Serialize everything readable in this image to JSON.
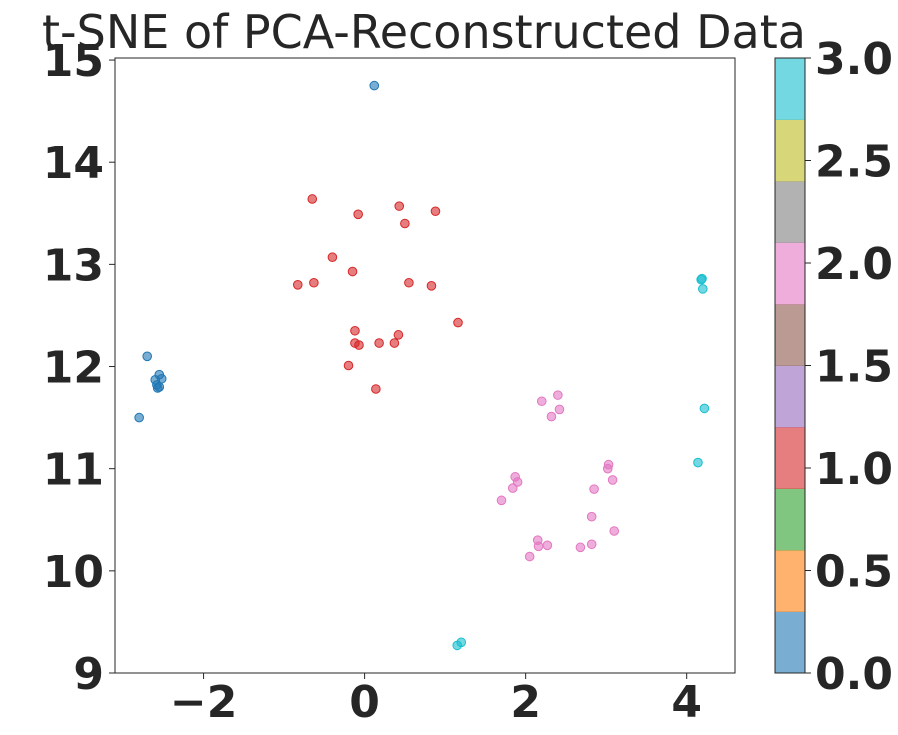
{
  "chart_data": {
    "type": "scatter",
    "title": "t-SNE of PCA-Reconstructed Data",
    "xlabel": "",
    "ylabel": "",
    "xlim": [
      -3.1,
      4.6
    ],
    "ylim": [
      9.0,
      15.02
    ],
    "xticks": [
      -2,
      0,
      2,
      4
    ],
    "xtick_labels": [
      "−2",
      "0",
      "2",
      "4"
    ],
    "yticks": [
      9,
      10,
      11,
      12,
      13,
      14,
      15
    ],
    "ytick_labels": [
      "9",
      "10",
      "11",
      "12",
      "13",
      "14",
      "15"
    ],
    "grid": false,
    "colormap": "tab10",
    "colorbar": {
      "range": [
        0.0,
        3.0
      ],
      "ticks": [
        0.0,
        0.5,
        1.0,
        1.5,
        2.0,
        2.5,
        3.0
      ],
      "tick_labels": [
        "0.0",
        "0.5",
        "1.0",
        "1.5",
        "2.0",
        "2.5",
        "3.0"
      ],
      "colors": [
        "#1f77b4",
        "#ff7f0e",
        "#2ca02c",
        "#d62728",
        "#9467bd",
        "#8c564b",
        "#e377c2",
        "#7f7f7f",
        "#bcbd22",
        "#17becf"
      ]
    },
    "point_alpha": 0.6,
    "series": [
      {
        "label_value": 0,
        "color": "#1f77b4",
        "points": [
          [
            0.12,
            14.75
          ],
          [
            -2.7,
            12.1
          ],
          [
            -2.55,
            11.92
          ],
          [
            -2.6,
            11.87
          ],
          [
            -2.52,
            11.88
          ],
          [
            -2.58,
            11.82
          ],
          [
            -2.57,
            11.79
          ],
          [
            -2.55,
            11.8
          ],
          [
            -2.8,
            11.5
          ]
        ]
      },
      {
        "label_value": 1,
        "color": "#d62728",
        "points": [
          [
            -0.65,
            13.64
          ],
          [
            0.43,
            13.57
          ],
          [
            -0.08,
            13.49
          ],
          [
            0.88,
            13.52
          ],
          [
            0.5,
            13.4
          ],
          [
            -0.4,
            13.07
          ],
          [
            -0.15,
            12.93
          ],
          [
            -0.83,
            12.8
          ],
          [
            -0.63,
            12.82
          ],
          [
            0.55,
            12.82
          ],
          [
            0.83,
            12.79
          ],
          [
            1.16,
            12.43
          ],
          [
            -0.12,
            12.35
          ],
          [
            0.42,
            12.31
          ],
          [
            -0.12,
            12.23
          ],
          [
            -0.07,
            12.21
          ],
          [
            0.18,
            12.23
          ],
          [
            0.37,
            12.23
          ],
          [
            -0.2,
            12.01
          ],
          [
            0.14,
            11.78
          ]
        ]
      },
      {
        "label_value": 2,
        "color": "#e377c2",
        "points": [
          [
            2.4,
            11.72
          ],
          [
            2.2,
            11.66
          ],
          [
            2.42,
            11.58
          ],
          [
            2.32,
            11.51
          ],
          [
            3.03,
            11.04
          ],
          [
            3.02,
            11.0
          ],
          [
            1.87,
            10.92
          ],
          [
            1.9,
            10.87
          ],
          [
            3.08,
            10.89
          ],
          [
            1.84,
            10.81
          ],
          [
            2.85,
            10.8
          ],
          [
            1.7,
            10.69
          ],
          [
            2.82,
            10.53
          ],
          [
            3.1,
            10.39
          ],
          [
            2.15,
            10.3
          ],
          [
            2.27,
            10.25
          ],
          [
            2.16,
            10.24
          ],
          [
            2.68,
            10.23
          ],
          [
            2.82,
            10.26
          ],
          [
            2.05,
            10.14
          ]
        ]
      },
      {
        "label_value": 3,
        "color": "#17becf",
        "points": [
          [
            4.19,
            12.86
          ],
          [
            4.18,
            12.85
          ],
          [
            4.2,
            12.76
          ],
          [
            4.22,
            11.59
          ],
          [
            4.14,
            11.06
          ],
          [
            1.2,
            9.3
          ],
          [
            1.15,
            9.27
          ]
        ]
      }
    ]
  }
}
